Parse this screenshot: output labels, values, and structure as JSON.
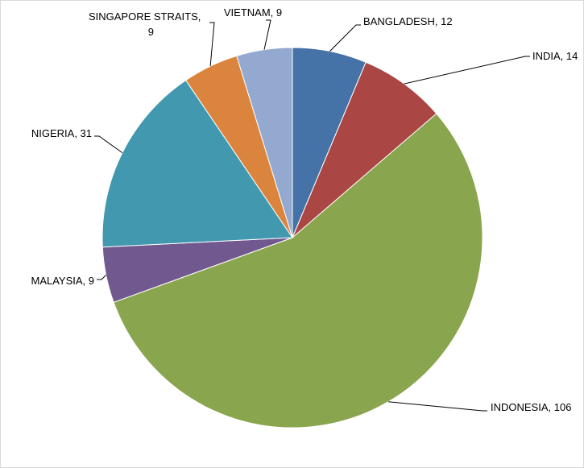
{
  "chart_data": {
    "type": "pie",
    "title": "",
    "slices": [
      {
        "label": "BANGLADESH",
        "value": 12,
        "color": "#4572A7",
        "text": "BANGLADESH, 12"
      },
      {
        "label": "INDIA",
        "value": 14,
        "color": "#AA4643",
        "text": "INDIA, 14"
      },
      {
        "label": "INDONESIA",
        "value": 106,
        "color": "#89A54E",
        "text": "INDONESIA, 106"
      },
      {
        "label": "MALAYSIA",
        "value": 9,
        "color": "#71588F",
        "text": "MALAYSIA, 9"
      },
      {
        "label": "NIGERIA",
        "value": 31,
        "color": "#4198AF",
        "text": "NIGERIA, 31"
      },
      {
        "label": "SINGAPORE STRAITS",
        "value": 9,
        "color": "#DB843D",
        "text_lines": [
          "SINGAPORE STRAITS,",
          "9"
        ]
      },
      {
        "label": "VIETNAM",
        "value": 9,
        "color": "#93A9CF",
        "text": "VIETNAM, 9"
      }
    ],
    "start_angle": "12 o'clock",
    "direction": "clockwise",
    "legend": "none",
    "data_labels": "outside with leader lines"
  }
}
